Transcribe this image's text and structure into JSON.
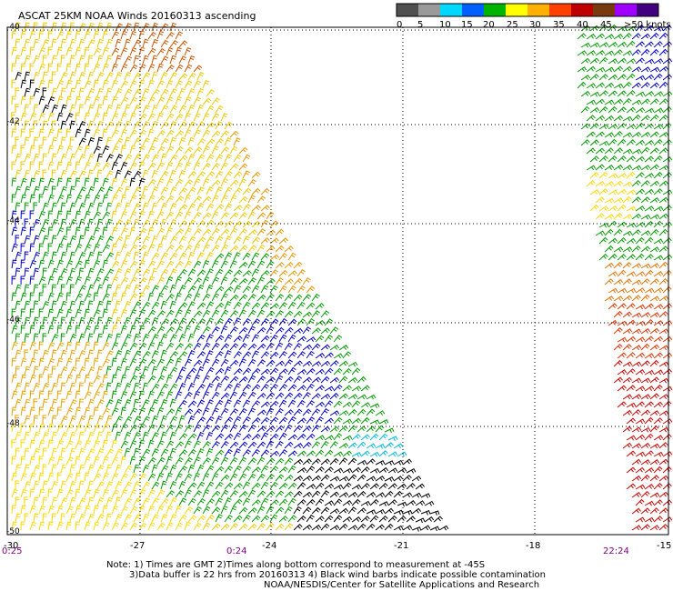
{
  "title": "ASCAT 25KM NOAA Winds 20160313 ascending",
  "legend": {
    "labels": [
      "0",
      "5",
      "10",
      "15",
      "20",
      "25",
      "30",
      "35",
      "40",
      "45",
      ">50 knots"
    ],
    "colors": [
      "#505050",
      "#9a9a9a",
      "#00d8ff",
      "#0060ff",
      "#00b400",
      "#ffff00",
      "#ffb000",
      "#ff4000",
      "#c00000",
      "#7a3a10",
      "#a000ff",
      "#400080"
    ]
  },
  "axes": {
    "lat_labels": [
      "-40",
      "-42",
      "-44",
      "-46",
      "-48",
      "-50"
    ],
    "lon_labels": [
      "-30",
      "-27",
      "-24",
      "-21",
      "-18",
      "-15"
    ]
  },
  "pass_times": [
    "0:25",
    "0:24",
    "22:24"
  ],
  "notes": {
    "line1": "Note: 1) Times are GMT 2)Times along bottom correspond to measurement at -45S",
    "line2": "3)Data buffer is 22 hrs from 20160313 4) Black wind barbs indicate possible contamination",
    "line3": "NOAA/NESDIS/Center for Satellite Applications and Research"
  }
}
